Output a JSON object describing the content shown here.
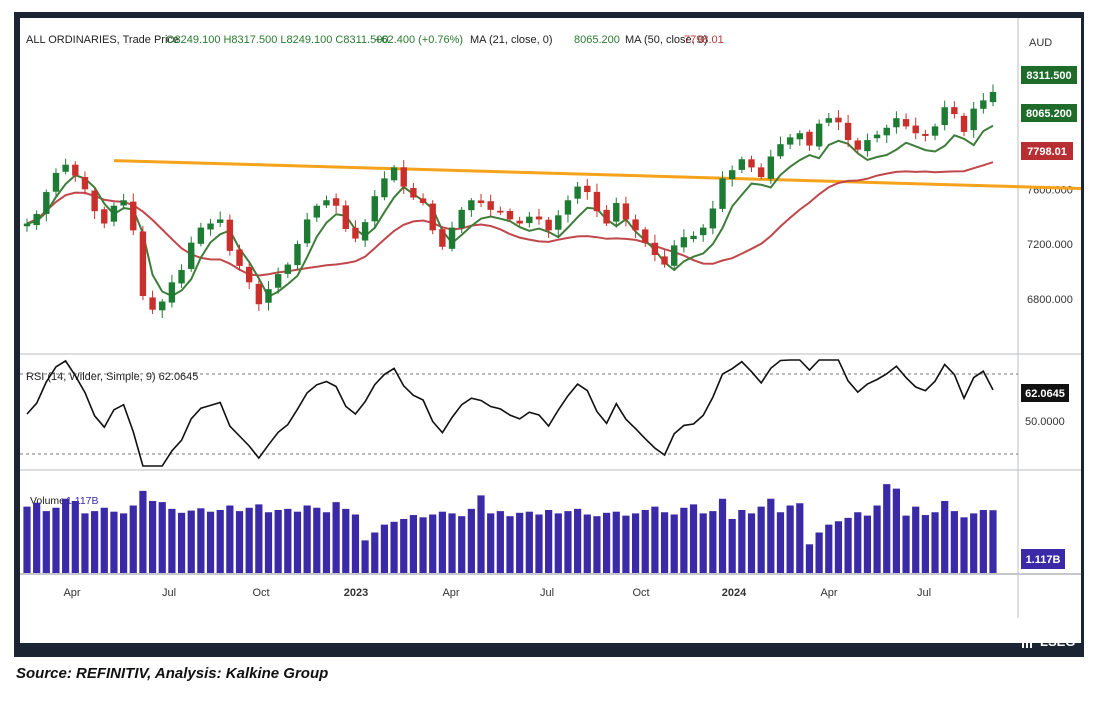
{
  "header": {
    "instrument": "ALL ORDINARIES, Trade Price",
    "ohlc": "O8249.100  H8317.500  L8249.100  C8311.500",
    "change": "+62.400 (+0.76%)",
    "ma21_label": "MA (21, close, 0)",
    "ma21_value": "8065.200",
    "ma50_label": "MA (50, close, 0)",
    "ma50_value": "7798.01"
  },
  "currency": "AUD",
  "price_badges": {
    "close": "8311.500",
    "ma21": "8065.200",
    "ma50": "7798.01"
  },
  "rsi_header": "RSI (14, Wilder, Simple, 9)  62.0645",
  "rsi_badges": {
    "value": "62.0645",
    "mid": "50.0000"
  },
  "volume_header_label": "Volume",
  "volume_header_value": "1.117B",
  "volume_badge": "1.117B",
  "source_caption": "Source: REFINITIV, Analysis: Kalkine Group",
  "logo_text": "LSEG",
  "colors": {
    "up": "#1e7b34",
    "down": "#c9302c",
    "ma21": "#3f7d3a",
    "ma50": "#c0474a",
    "trendline": "#f7a21b",
    "volume": "#3b2aa8",
    "frame": "#1b2433"
  },
  "chart_data": [
    {
      "type": "candlestick",
      "title": "ALL ORDINARIES, Trade Price",
      "frequency": "weekly",
      "x_labels": [
        "Apr",
        "Jul",
        "Oct",
        "2023",
        "Apr",
        "Jul",
        "Oct",
        "2024",
        "Apr",
        "Jul"
      ],
      "y_ticks": [
        6800,
        7200,
        7600
      ],
      "ylim": [
        6440,
        8560
      ],
      "closes": [
        7350,
        7420,
        7580,
        7720,
        7780,
        7700,
        7600,
        7440,
        7350,
        7480,
        7520,
        7300,
        6820,
        6720,
        6780,
        6920,
        7010,
        7210,
        7320,
        7350,
        7380,
        7150,
        7040,
        6920,
        6760,
        6870,
        6980,
        7050,
        7200,
        7380,
        7480,
        7520,
        7480,
        7310,
        7240,
        7360,
        7550,
        7680,
        7760,
        7620,
        7540,
        7500,
        7300,
        7180,
        7320,
        7450,
        7520,
        7500,
        7450,
        7430,
        7380,
        7350,
        7400,
        7380,
        7300,
        7410,
        7520,
        7620,
        7580,
        7440,
        7350,
        7500,
        7380,
        7300,
        7210,
        7120,
        7050,
        7190,
        7250,
        7260,
        7320,
        7460,
        7680,
        7740,
        7820,
        7760,
        7690,
        7840,
        7930,
        7980,
        8010,
        7920,
        8080,
        8120,
        8090,
        7960,
        7890,
        7960,
        8000,
        8050,
        8120,
        8060,
        8010,
        7990,
        8060,
        8200,
        8150,
        8020,
        8190,
        8250,
        8311.5
      ],
      "ma21_label": "MA (21, close, 0)",
      "ma50_label": "MA (50, close, 0)",
      "ma21_last": 8065.2,
      "ma50_last": 7798.01,
      "last_close": 8311.5,
      "trendline": [
        {
          "week": 9,
          "price": 7810
        },
        {
          "week": 117,
          "price": 7590
        }
      ],
      "grid": false
    },
    {
      "type": "line",
      "title": "RSI (14, Wilder, Simple, 9)",
      "ylim": [
        23,
        78
      ],
      "reference_lines": [
        30,
        70
      ],
      "y_ticks": [
        50
      ],
      "last": 62.0645
    },
    {
      "type": "bar",
      "title": "Volume",
      "units": "B",
      "ylim": [
        0,
        1.6
      ],
      "values": [
        1.18,
        1.25,
        1.1,
        1.16,
        1.32,
        1.28,
        1.06,
        1.1,
        1.16,
        1.09,
        1.06,
        1.2,
        1.46,
        1.28,
        1.26,
        1.14,
        1.07,
        1.11,
        1.15,
        1.09,
        1.12,
        1.2,
        1.1,
        1.16,
        1.22,
        1.08,
        1.12,
        1.14,
        1.09,
        1.2,
        1.16,
        1.08,
        1.26,
        1.14,
        1.04,
        0.58,
        0.72,
        0.86,
        0.91,
        0.96,
        1.03,
        0.99,
        1.04,
        1.09,
        1.06,
        1.01,
        1.14,
        1.38,
        1.06,
        1.1,
        1.01,
        1.07,
        1.09,
        1.04,
        1.12,
        1.06,
        1.1,
        1.14,
        1.04,
        1.01,
        1.07,
        1.09,
        1.02,
        1.06,
        1.12,
        1.18,
        1.08,
        1.04,
        1.16,
        1.22,
        1.06,
        1.1,
        1.32,
        0.96,
        1.12,
        1.06,
        1.18,
        1.32,
        1.08,
        1.2,
        1.24,
        0.51,
        0.72,
        0.86,
        0.92,
        0.98,
        1.08,
        1.02,
        1.2,
        1.58,
        1.5,
        1.02,
        1.18,
        1.03,
        1.08,
        1.28,
        1.1,
        0.99,
        1.06,
        1.12,
        1.116
      ],
      "last": 1.117
    }
  ]
}
